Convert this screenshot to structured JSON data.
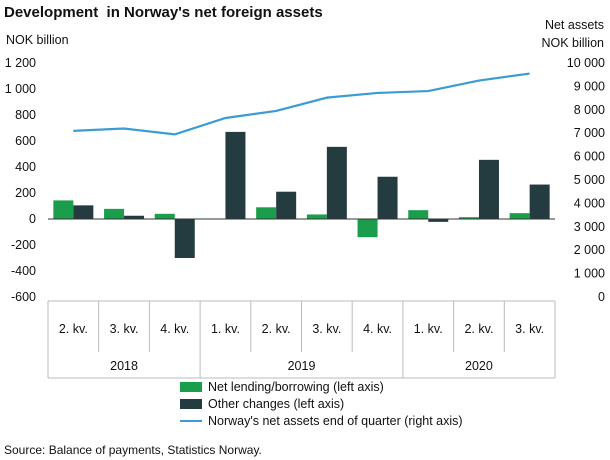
{
  "chart_data": {
    "type": "bar",
    "title": "Development  in Norway's net foreign assets",
    "ylabel_left": "NOK billion",
    "ylabel_right": [
      "Net assets",
      "NOK billion"
    ],
    "categories": [
      "2. kv.",
      "3. kv.",
      "4. kv.",
      "1. kv.",
      "2. kv.",
      "3. kv.",
      "4. kv.",
      "1. kv.",
      "2. kv.",
      "3. kv."
    ],
    "year_groups": [
      {
        "label": "2018",
        "count": 3
      },
      {
        "label": "2019",
        "count": 4
      },
      {
        "label": "2020",
        "count": 3
      }
    ],
    "ylim_left": [
      -600,
      1200
    ],
    "yticks_left": [
      "-600",
      "-400",
      "-200",
      "0",
      "200",
      "400",
      "600",
      "800",
      "1 000",
      "1 200"
    ],
    "ylim_right": [
      0,
      10000
    ],
    "yticks_right": [
      "0",
      "1 000",
      "2 000",
      "3 000",
      "4 000",
      "5 000",
      "6 000",
      "7 000",
      "8 000",
      "9 000",
      "10 000"
    ],
    "series": [
      {
        "name": "Net lending/borrowing (left axis)",
        "kind": "bar",
        "axis": "left",
        "color": "#1a9e4b",
        "values": [
          143,
          78,
          40,
          0,
          90,
          35,
          -140,
          68,
          14,
          45
        ]
      },
      {
        "name": "Other changes (left axis)",
        "kind": "bar",
        "axis": "left",
        "color": "#243b3f",
        "values": [
          105,
          25,
          -300,
          670,
          210,
          555,
          325,
          -22,
          455,
          265
        ]
      },
      {
        "name": "Norway's net assets end of quarter (right axis)",
        "kind": "line",
        "axis": "right",
        "color": "#3b9bd4",
        "values": [
          7100,
          7200,
          6950,
          7650,
          7950,
          8520,
          8720,
          8800,
          9250,
          9550
        ]
      }
    ],
    "grid": false,
    "legend_position": "bottom"
  },
  "source": "Source: Balance of payments, Statistics Norway."
}
